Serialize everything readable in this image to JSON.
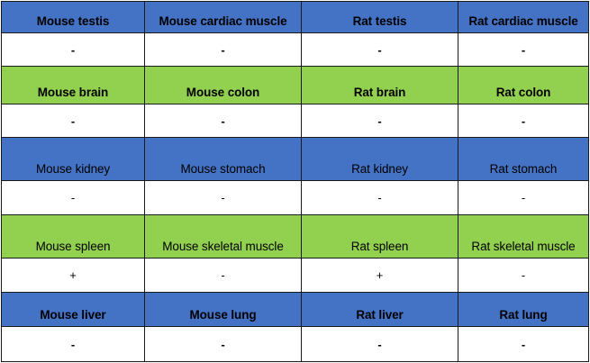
{
  "colors": {
    "blue": "#4472C4",
    "green": "#92D050",
    "white": "#FFFFFF"
  },
  "rows": [
    {
      "type": "label",
      "color": "blue",
      "bold": true,
      "cells": [
        "Mouse testis",
        "Mouse cardiac muscle",
        "Rat testis",
        "Rat cardiac muscle"
      ]
    },
    {
      "type": "value",
      "color": "white",
      "bold": true,
      "cells": [
        "-",
        "-",
        "-",
        "-"
      ]
    },
    {
      "type": "label",
      "color": "green",
      "bold": true,
      "cells": [
        "Mouse brain",
        "Mouse colon",
        "Rat brain",
        "Rat colon"
      ]
    },
    {
      "type": "value",
      "color": "white",
      "bold": true,
      "cells": [
        "-",
        "-",
        "-",
        "-"
      ]
    },
    {
      "type": "label",
      "color": "blue",
      "bold": false,
      "cells": [
        "Mouse kidney",
        "Mouse stomach",
        "Rat kidney",
        "Rat stomach"
      ]
    },
    {
      "type": "value",
      "color": "white",
      "bold": false,
      "cells": [
        "-",
        "-",
        "-",
        "-"
      ]
    },
    {
      "type": "label",
      "color": "green",
      "bold": false,
      "cells": [
        "Mouse spleen",
        "Mouse skeletal muscle",
        "Rat spleen",
        "Rat skeletal muscle"
      ]
    },
    {
      "type": "value",
      "color": "white",
      "bold": false,
      "cells": [
        "+",
        "-",
        "+",
        "-"
      ]
    },
    {
      "type": "label",
      "color": "blue",
      "bold": true,
      "cells": [
        "Mouse liver",
        "Mouse lung",
        "Rat liver",
        "Rat lung"
      ]
    },
    {
      "type": "value",
      "color": "white",
      "bold": true,
      "cells": [
        "-",
        "-",
        "-",
        "-"
      ]
    }
  ]
}
